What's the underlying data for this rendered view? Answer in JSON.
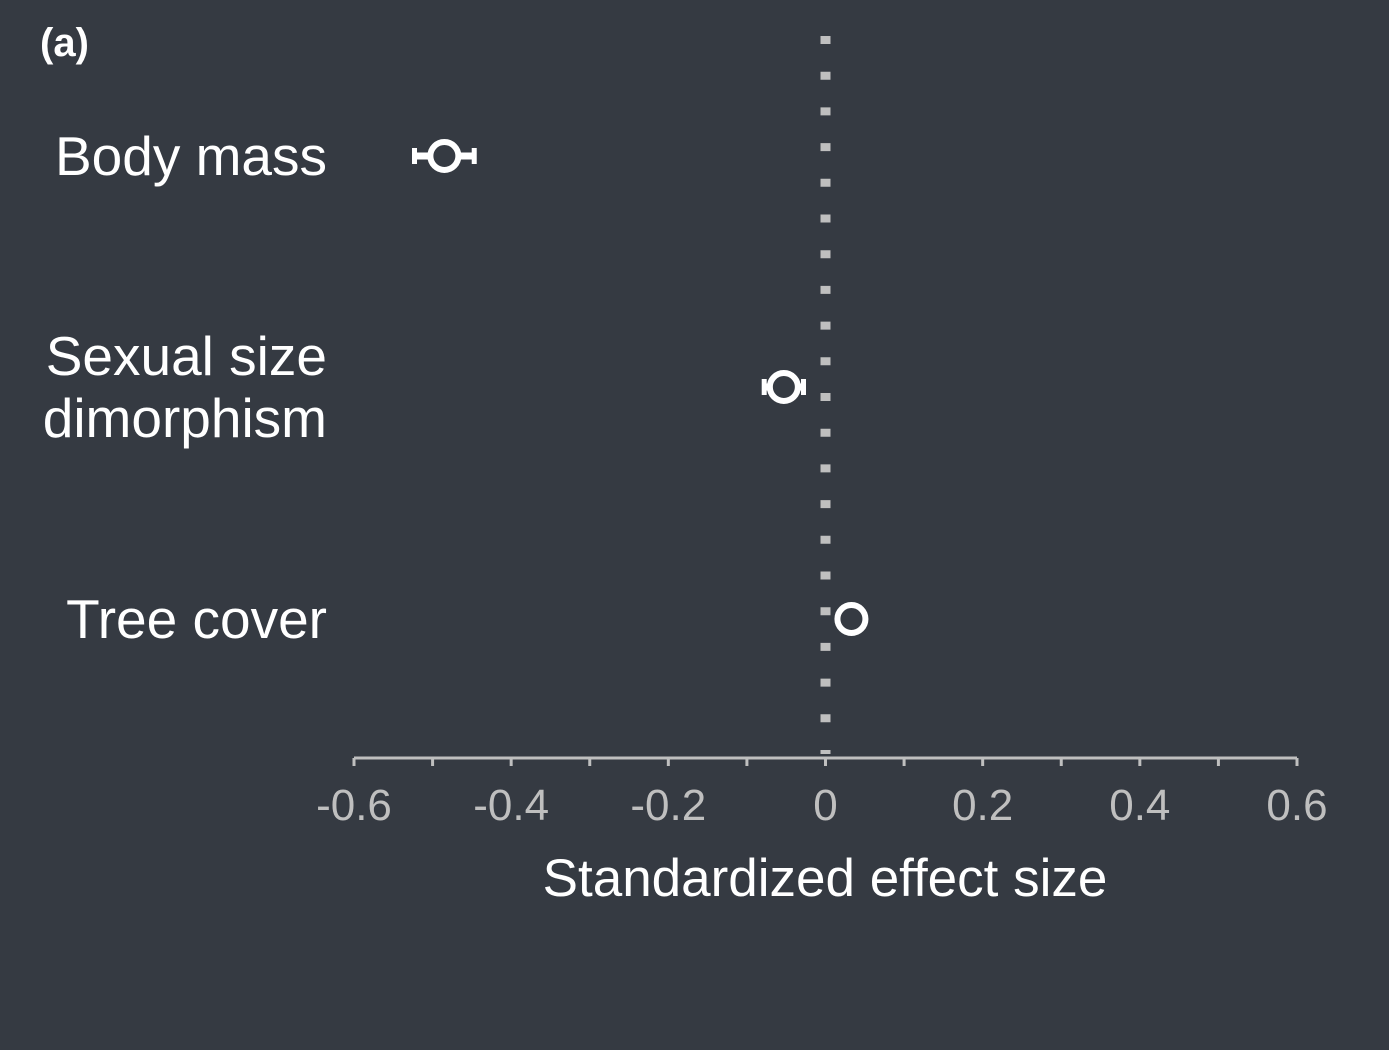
{
  "panel_label": "(a)",
  "chart_data": {
    "type": "scatter",
    "subtype": "forest-plot",
    "title": "",
    "xlabel": "Standardized effect size",
    "ylabel": "",
    "xlim": [
      -0.6,
      0.6
    ],
    "x_ticks": [
      -0.6,
      -0.5,
      -0.4,
      -0.3,
      -0.2,
      -0.1,
      0,
      0.1,
      0.2,
      0.3,
      0.4,
      0.5,
      0.6
    ],
    "x_tick_labels": [
      "-0.6",
      "-0.4",
      "-0.2",
      "0",
      "0.2",
      "0.4",
      "0.6"
    ],
    "x_tick_label_values": [
      -0.6,
      -0.4,
      -0.2,
      0,
      0.2,
      0.4,
      0.6
    ],
    "reference_line": {
      "x": 0,
      "style": "dotted",
      "color": "#bfbfbf"
    },
    "grid": false,
    "legend": "none",
    "categories": [
      {
        "lines": [
          "Body mass"
        ],
        "estimate": -0.485,
        "ci": [
          -0.523,
          -0.447
        ]
      },
      {
        "lines": [
          "Sexual size",
          "dimorphism"
        ],
        "estimate": -0.053,
        "ci": [
          -0.078,
          -0.028
        ]
      },
      {
        "lines": [
          "Tree cover"
        ],
        "estimate": 0.033,
        "ci": [
          0.022,
          0.044
        ]
      }
    ],
    "colors": {
      "background": "#353a42",
      "marker": "#ffffff",
      "axis": "#bfbfbf",
      "tick_label": "#bfbfbf",
      "text": "#ffffff"
    }
  }
}
